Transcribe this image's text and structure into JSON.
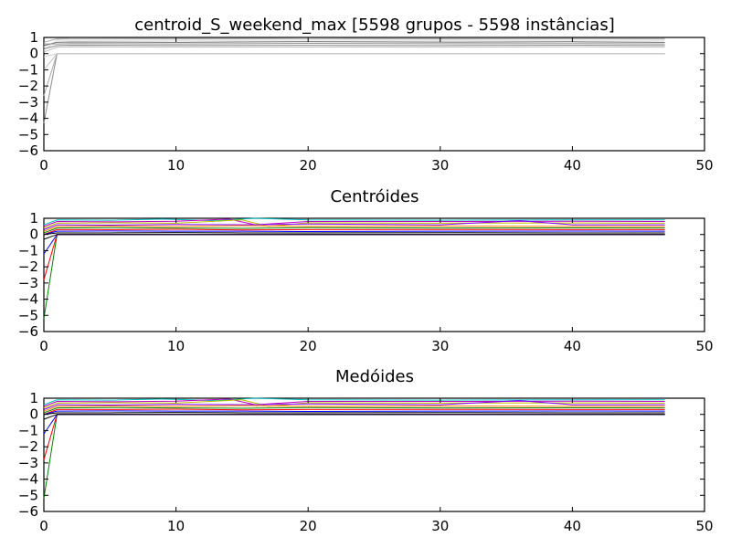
{
  "chart_data": [
    {
      "type": "line",
      "title": "centroid_S_weekend_max [5598 grupos - 5598 instâncias]",
      "xlim": [
        0,
        50
      ],
      "ylim": [
        -6,
        1
      ],
      "xticks": [
        0,
        10,
        20,
        30,
        40,
        50
      ],
      "yticks": [
        1,
        0,
        -1,
        -2,
        -3,
        -4,
        -5,
        -6
      ],
      "grid": false,
      "color_style": "grayscale",
      "colors": [
        "#8c8c8c",
        "#a6a6a6",
        "#bfbfbf",
        "#d0d0d0",
        "#dcdcdc",
        "#e6e6e6",
        "#707070",
        "#999999"
      ],
      "series": [
        {
          "x": [
            0,
            1,
            47
          ],
          "values": [
            -4.3,
            0.0,
            0.0
          ]
        },
        {
          "x": [
            0,
            1,
            47
          ],
          "values": [
            -2.6,
            0.0,
            0.0
          ]
        },
        {
          "x": [
            0,
            1,
            47
          ],
          "values": [
            -1.0,
            0.0,
            0.0
          ]
        },
        {
          "x": [
            0,
            1,
            47
          ],
          "values": [
            -0.2,
            0.0,
            0.0
          ]
        },
        {
          "x": [
            0,
            1,
            2,
            10,
            20,
            30,
            40,
            47
          ],
          "values": [
            0.2,
            0.85,
            0.9,
            0.88,
            0.9,
            0.87,
            0.9,
            0.88
          ]
        },
        {
          "x": [
            0,
            1,
            2,
            10,
            20,
            30,
            40,
            47
          ],
          "values": [
            0.4,
            0.8,
            0.82,
            0.8,
            0.83,
            0.8,
            0.82,
            0.8
          ]
        },
        {
          "x": [
            0,
            1,
            2,
            10,
            20,
            30,
            40,
            47
          ],
          "values": [
            0.5,
            0.7,
            0.72,
            0.7,
            0.74,
            0.71,
            0.73,
            0.7
          ]
        },
        {
          "x": [
            0,
            1,
            2,
            10,
            20,
            30,
            40,
            47
          ],
          "values": [
            0.6,
            0.6,
            0.62,
            0.6,
            0.63,
            0.61,
            0.62,
            0.6
          ]
        },
        {
          "x": [
            0,
            1,
            2,
            10,
            20,
            30,
            40,
            47
          ],
          "values": [
            0.3,
            0.5,
            0.52,
            0.5,
            0.51,
            0.5,
            0.52,
            0.5
          ]
        },
        {
          "x": [
            0,
            1,
            2,
            10,
            20,
            30,
            40,
            47
          ],
          "values": [
            0.7,
            0.92,
            0.95,
            0.93,
            0.95,
            0.92,
            0.94,
            0.93
          ]
        },
        {
          "x": [
            0,
            1,
            2,
            10,
            20,
            30,
            40,
            47
          ],
          "values": [
            0.1,
            0.4,
            0.42,
            0.4,
            0.41,
            0.4,
            0.42,
            0.4
          ]
        }
      ]
    },
    {
      "type": "line",
      "title": "Centróides",
      "xlim": [
        0,
        50
      ],
      "ylim": [
        -6,
        1
      ],
      "xticks": [
        0,
        10,
        20,
        30,
        40,
        50
      ],
      "yticks": [
        1,
        0,
        -1,
        -2,
        -3,
        -4,
        -5,
        -6
      ],
      "grid": false,
      "color_style": "multicolor",
      "colors": [
        "#008000",
        "#ff0000",
        "#0000ff",
        "#000000",
        "#00bfbf",
        "#bf00bf",
        "#bfbf00",
        "#8000ff",
        "#ff8000"
      ],
      "series": [
        {
          "x": [
            0,
            1,
            47
          ],
          "values": [
            -5.2,
            0.0,
            0.0
          ]
        },
        {
          "x": [
            0,
            1,
            47
          ],
          "values": [
            -2.8,
            0.0,
            0.0
          ]
        },
        {
          "x": [
            0,
            1,
            47
          ],
          "values": [
            -1.2,
            0.0,
            0.0
          ]
        },
        {
          "x": [
            0,
            1,
            47
          ],
          "values": [
            -0.3,
            0.0,
            0.0
          ]
        },
        {
          "x": [
            0,
            1,
            5,
            9,
            13,
            16,
            20,
            30,
            40,
            47
          ],
          "values": [
            0.6,
            0.9,
            0.88,
            0.95,
            0.85,
            1.0,
            0.9,
            0.88,
            0.9,
            0.9
          ]
        },
        {
          "x": [
            0,
            1,
            5,
            10,
            14,
            16,
            20,
            30,
            40,
            47
          ],
          "values": [
            0.5,
            0.8,
            0.78,
            0.82,
            0.95,
            0.6,
            0.8,
            0.8,
            0.82,
            0.8
          ]
        },
        {
          "x": [
            0,
            1,
            5,
            10,
            15,
            17,
            20,
            30,
            40,
            47
          ],
          "values": [
            0.4,
            0.7,
            0.72,
            0.7,
            0.9,
            0.5,
            0.72,
            0.7,
            0.71,
            0.7
          ]
        },
        {
          "x": [
            0,
            1,
            5,
            10,
            15,
            20,
            30,
            36,
            40,
            47
          ],
          "values": [
            0.3,
            0.6,
            0.58,
            0.62,
            0.6,
            0.65,
            0.6,
            0.85,
            0.6,
            0.6
          ]
        },
        {
          "x": [
            0,
            1,
            5,
            10,
            15,
            20,
            30,
            40,
            47
          ],
          "values": [
            0.2,
            0.5,
            0.52,
            0.5,
            0.55,
            0.5,
            0.52,
            0.5,
            0.5
          ]
        },
        {
          "x": [
            0,
            1,
            5,
            10,
            15,
            20,
            30,
            40,
            47
          ],
          "values": [
            0.1,
            0.4,
            0.42,
            0.4,
            0.38,
            0.42,
            0.4,
            0.41,
            0.4
          ]
        },
        {
          "x": [
            0,
            1,
            5,
            10,
            15,
            20,
            30,
            40,
            47
          ],
          "values": [
            0.0,
            0.3,
            0.3,
            0.32,
            0.28,
            0.3,
            0.31,
            0.3,
            0.3
          ]
        },
        {
          "x": [
            0,
            1,
            5,
            10,
            15,
            20,
            30,
            40,
            47
          ],
          "values": [
            0.0,
            0.2,
            0.22,
            0.2,
            0.2,
            0.18,
            0.2,
            0.21,
            0.2
          ]
        },
        {
          "x": [
            0,
            1,
            5,
            10,
            15,
            20,
            30,
            40,
            47
          ],
          "values": [
            0.0,
            0.1,
            0.1,
            0.12,
            0.1,
            0.1,
            0.11,
            0.1,
            0.1
          ]
        }
      ]
    },
    {
      "type": "line",
      "title": "Medóides",
      "xlim": [
        0,
        50
      ],
      "ylim": [
        -6,
        1
      ],
      "xticks": [
        0,
        10,
        20,
        30,
        40,
        50
      ],
      "yticks": [
        1,
        0,
        -1,
        -2,
        -3,
        -4,
        -5,
        -6
      ],
      "grid": false,
      "color_style": "multicolor",
      "colors": [
        "#008000",
        "#ff0000",
        "#0000ff",
        "#000000",
        "#00bfbf",
        "#bf00bf",
        "#bfbf00",
        "#8000ff",
        "#ff8000"
      ],
      "series": [
        {
          "x": [
            0,
            1,
            47
          ],
          "values": [
            -5.2,
            0.0,
            0.0
          ]
        },
        {
          "x": [
            0,
            1,
            47
          ],
          "values": [
            -2.8,
            0.0,
            0.0
          ]
        },
        {
          "x": [
            0,
            1,
            47
          ],
          "values": [
            -1.2,
            0.0,
            0.0
          ]
        },
        {
          "x": [
            0,
            1,
            47
          ],
          "values": [
            -0.3,
            0.0,
            0.0
          ]
        },
        {
          "x": [
            0,
            1,
            5,
            9,
            13,
            16,
            20,
            30,
            40,
            47
          ],
          "values": [
            0.6,
            0.9,
            0.88,
            0.95,
            0.85,
            1.0,
            0.9,
            0.88,
            0.9,
            0.9
          ]
        },
        {
          "x": [
            0,
            1,
            5,
            10,
            14,
            16,
            20,
            30,
            40,
            47
          ],
          "values": [
            0.5,
            0.8,
            0.78,
            0.82,
            0.95,
            0.6,
            0.8,
            0.8,
            0.82,
            0.8
          ]
        },
        {
          "x": [
            0,
            1,
            5,
            10,
            15,
            17,
            20,
            30,
            40,
            47
          ],
          "values": [
            0.4,
            0.7,
            0.72,
            0.7,
            0.9,
            0.5,
            0.72,
            0.7,
            0.71,
            0.7
          ]
        },
        {
          "x": [
            0,
            1,
            5,
            10,
            15,
            20,
            30,
            36,
            40,
            47
          ],
          "values": [
            0.3,
            0.6,
            0.58,
            0.62,
            0.6,
            0.65,
            0.6,
            0.85,
            0.6,
            0.6
          ]
        },
        {
          "x": [
            0,
            1,
            5,
            10,
            15,
            20,
            30,
            40,
            47
          ],
          "values": [
            0.2,
            0.5,
            0.52,
            0.5,
            0.55,
            0.5,
            0.52,
            0.5,
            0.5
          ]
        },
        {
          "x": [
            0,
            1,
            5,
            10,
            15,
            20,
            30,
            40,
            47
          ],
          "values": [
            0.1,
            0.4,
            0.42,
            0.4,
            0.38,
            0.42,
            0.4,
            0.41,
            0.4
          ]
        },
        {
          "x": [
            0,
            1,
            5,
            10,
            15,
            20,
            30,
            40,
            47
          ],
          "values": [
            0.0,
            0.3,
            0.3,
            0.32,
            0.28,
            0.3,
            0.31,
            0.3,
            0.3
          ]
        },
        {
          "x": [
            0,
            1,
            5,
            10,
            15,
            20,
            30,
            40,
            47
          ],
          "values": [
            0.0,
            0.2,
            0.22,
            0.2,
            0.2,
            0.18,
            0.2,
            0.21,
            0.2
          ]
        },
        {
          "x": [
            0,
            1,
            5,
            10,
            15,
            20,
            30,
            40,
            47
          ],
          "values": [
            0.0,
            0.1,
            0.1,
            0.12,
            0.1,
            0.1,
            0.11,
            0.1,
            0.1
          ]
        }
      ]
    }
  ]
}
